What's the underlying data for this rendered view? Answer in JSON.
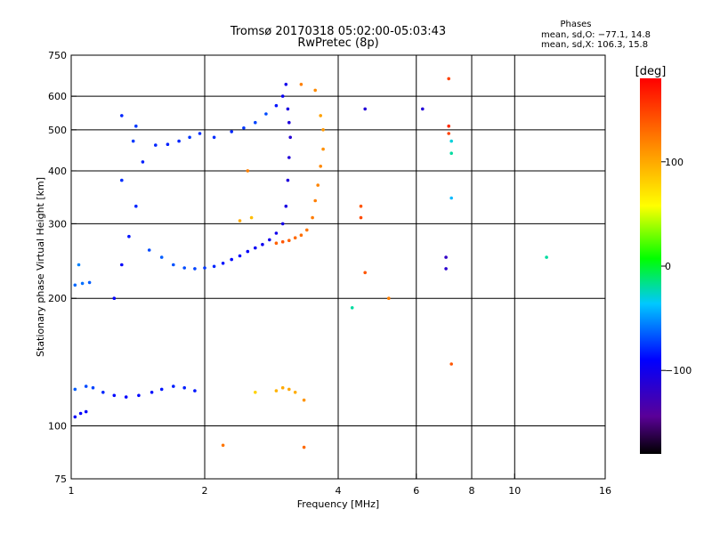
{
  "title_line1": "Tromsø 20170318 05:02:00-05:03:43",
  "title_line2": "RwPretec (8p)",
  "phases": {
    "heading": "Phases",
    "line_o": "mean, sd,O: −77.1, 14.8",
    "line_x": "mean, sd,X: 106.3, 15.8"
  },
  "chart_data": {
    "type": "scatter",
    "xlabel": "Frequency [MHz]",
    "ylabel": "Stationary phase Virtual Height [km]",
    "x_scale": "log",
    "y_scale": "log",
    "xlim": [
      1,
      16
    ],
    "ylim": [
      75,
      750
    ],
    "x_ticks": [
      {
        "value": 1,
        "label": "1"
      },
      {
        "value": 2,
        "label": "2"
      },
      {
        "value": 4,
        "label": "4"
      },
      {
        "value": 6,
        "label": "6"
      },
      {
        "value": 8,
        "label": "8"
      },
      {
        "value": 10,
        "label": "10"
      },
      {
        "value": 16,
        "label": "16"
      }
    ],
    "y_ticks": [
      {
        "value": 75,
        "label": "75"
      },
      {
        "value": 100,
        "label": "100"
      },
      {
        "value": 200,
        "label": "200"
      },
      {
        "value": 300,
        "label": "300"
      },
      {
        "value": 400,
        "label": "400"
      },
      {
        "value": 500,
        "label": "500"
      },
      {
        "value": 600,
        "label": "600"
      },
      {
        "value": 750,
        "label": "750"
      }
    ],
    "grid": true,
    "colorbar": {
      "label": "[deg]",
      "min": -180,
      "max": 180,
      "ticks": [
        {
          "value": 100,
          "label": "100"
        },
        {
          "value": 0,
          "label": "0"
        },
        {
          "value": -100,
          "label": "−100"
        }
      ]
    },
    "points": [
      [
        1.02,
        105,
        -95
      ],
      [
        1.05,
        107,
        -90
      ],
      [
        1.08,
        108,
        -92
      ],
      [
        1.02,
        215,
        -62
      ],
      [
        1.06,
        217,
        -60
      ],
      [
        1.1,
        218,
        -65
      ],
      [
        1.04,
        240,
        -55
      ],
      [
        1.02,
        122,
        -65
      ],
      [
        1.08,
        124,
        -70
      ],
      [
        1.12,
        123,
        -72
      ],
      [
        1.18,
        120,
        -80
      ],
      [
        1.25,
        118,
        -88
      ],
      [
        1.33,
        117,
        -90
      ],
      [
        1.42,
        118,
        -88
      ],
      [
        1.52,
        120,
        -86
      ],
      [
        1.6,
        122,
        -84
      ],
      [
        1.7,
        124,
        -82
      ],
      [
        1.8,
        123,
        -82
      ],
      [
        1.9,
        121,
        -84
      ],
      [
        1.25,
        200,
        -90
      ],
      [
        1.3,
        240,
        -92
      ],
      [
        1.35,
        280,
        -85
      ],
      [
        1.4,
        330,
        -80
      ],
      [
        1.3,
        380,
        -78
      ],
      [
        1.45,
        420,
        -82
      ],
      [
        1.38,
        470,
        -75
      ],
      [
        1.55,
        460,
        -80
      ],
      [
        1.65,
        462,
        -82
      ],
      [
        1.75,
        470,
        -80
      ],
      [
        1.85,
        480,
        -76
      ],
      [
        1.95,
        490,
        -78
      ],
      [
        1.3,
        540,
        -80
      ],
      [
        1.4,
        510,
        -75
      ],
      [
        1.5,
        260,
        -70
      ],
      [
        1.6,
        250,
        -65
      ],
      [
        1.7,
        240,
        -68
      ],
      [
        1.8,
        236,
        -70
      ],
      [
        1.9,
        235,
        -72
      ],
      [
        2.0,
        236,
        -75
      ],
      [
        2.1,
        238,
        -80
      ],
      [
        2.2,
        242,
        -85
      ],
      [
        2.3,
        247,
        -88
      ],
      [
        2.4,
        252,
        -90
      ],
      [
        2.5,
        258,
        -92
      ],
      [
        2.6,
        263,
        -95
      ],
      [
        2.7,
        268,
        -98
      ],
      [
        2.8,
        275,
        -100
      ],
      [
        2.9,
        285,
        -100
      ],
      [
        3.0,
        300,
        -102
      ],
      [
        2.1,
        480,
        -78
      ],
      [
        2.3,
        495,
        -80
      ],
      [
        2.45,
        505,
        -75
      ],
      [
        2.6,
        520,
        -72
      ],
      [
        2.75,
        545,
        -70
      ],
      [
        2.9,
        570,
        -85
      ],
      [
        3.0,
        600,
        -95
      ],
      [
        3.05,
        640,
        -100
      ],
      [
        3.05,
        330,
        -105
      ],
      [
        3.08,
        380,
        -108
      ],
      [
        3.1,
        430,
        -110
      ],
      [
        3.12,
        480,
        -112
      ],
      [
        3.1,
        520,
        -108
      ],
      [
        3.08,
        560,
        -105
      ],
      [
        2.9,
        270,
        135
      ],
      [
        3.0,
        272,
        140
      ],
      [
        3.1,
        274,
        135
      ],
      [
        3.2,
        278,
        130
      ],
      [
        3.3,
        282,
        128
      ],
      [
        3.4,
        290,
        125
      ],
      [
        3.5,
        310,
        122
      ],
      [
        3.55,
        340,
        120
      ],
      [
        3.6,
        370,
        118
      ],
      [
        3.65,
        410,
        116
      ],
      [
        3.7,
        450,
        112
      ],
      [
        3.7,
        500,
        108
      ],
      [
        3.65,
        540,
        104
      ],
      [
        3.55,
        620,
        115
      ],
      [
        3.3,
        640,
        120
      ],
      [
        2.5,
        400,
        120
      ],
      [
        2.4,
        305,
        100
      ],
      [
        2.55,
        310,
        90
      ],
      [
        2.6,
        120,
        80
      ],
      [
        2.9,
        121,
        95
      ],
      [
        3.0,
        123,
        100
      ],
      [
        3.1,
        122,
        102
      ],
      [
        3.2,
        120,
        98
      ],
      [
        3.35,
        115,
        110
      ],
      [
        2.2,
        90,
        125
      ],
      [
        3.35,
        89,
        130
      ],
      [
        4.5,
        330,
        140
      ],
      [
        4.5,
        310,
        145
      ],
      [
        4.6,
        230,
        140
      ],
      [
        4.3,
        190,
        -20
      ],
      [
        5.2,
        200,
        120
      ],
      [
        7.1,
        660,
        150
      ],
      [
        7.1,
        510,
        160
      ],
      [
        7.1,
        490,
        150
      ],
      [
        7.2,
        470,
        -30
      ],
      [
        7.2,
        440,
        -20
      ],
      [
        7.2,
        345,
        -40
      ],
      [
        7.0,
        250,
        -120
      ],
      [
        7.0,
        235,
        -115
      ],
      [
        7.2,
        140,
        140
      ],
      [
        6.2,
        560,
        -110
      ],
      [
        4.6,
        560,
        -110
      ],
      [
        11.8,
        250,
        -20
      ]
    ]
  }
}
